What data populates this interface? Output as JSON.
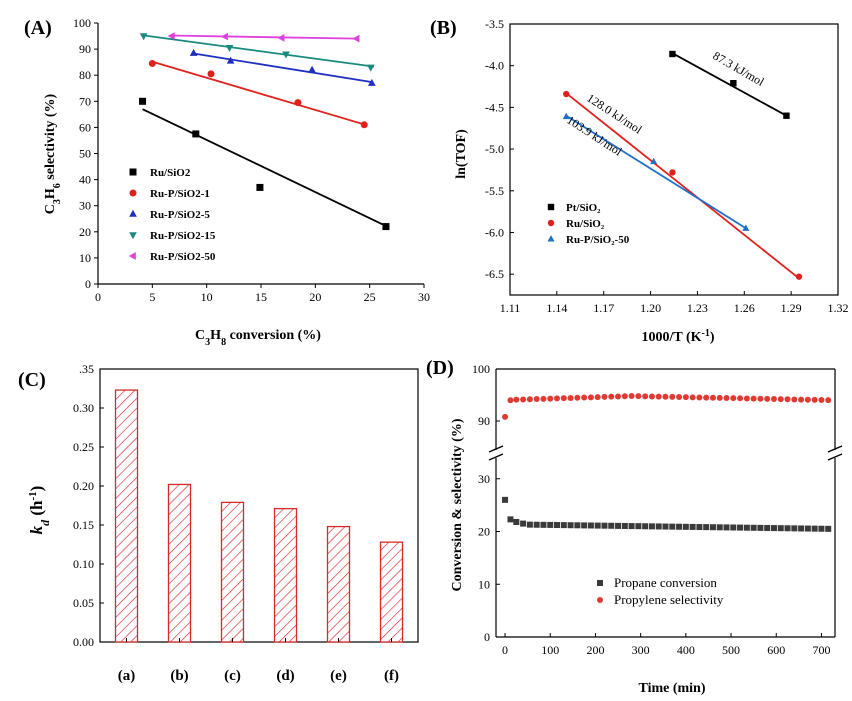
{
  "chart_data": [
    {
      "panel": "(A)",
      "type": "scatter",
      "xlabel": "C3H8 conversion (%)",
      "ylabel": "C3H6 selectivity (%)",
      "xlim": [
        0,
        30
      ],
      "ylim": [
        0,
        100
      ],
      "xticks": [
        0,
        5,
        10,
        15,
        20,
        25,
        30
      ],
      "yticks": [
        0,
        10,
        20,
        30,
        40,
        50,
        60,
        70,
        80,
        90,
        100
      ],
      "legend_position": "bottom-left",
      "series": [
        {
          "name": "Ru/SiO2",
          "color": "#000000",
          "marker": "square",
          "points": [
            [
              4.1,
              70
            ],
            [
              9,
              57.5
            ],
            [
              14.9,
              37
            ],
            [
              26.5,
              22
            ]
          ],
          "fit": [
            [
              4.1,
              67
            ],
            [
              26.2,
              22.8
            ]
          ]
        },
        {
          "name": "Ru-P/SiO2-1",
          "color": "#e0201b",
          "marker": "circle",
          "points": [
            [
              5,
              84.5
            ],
            [
              10.4,
              80.5
            ],
            [
              18.4,
              69.5
            ],
            [
              24.5,
              61
            ]
          ],
          "fit": [
            [
              4.9,
              85.3
            ],
            [
              24.7,
              60.9
            ]
          ]
        },
        {
          "name": "Ru-P/SiO2-5",
          "color": "#1f2fbf",
          "marker": "triangle-up",
          "points": [
            [
              8.8,
              88.5
            ],
            [
              12.2,
              85.5
            ],
            [
              19.7,
              82
            ],
            [
              25.2,
              77
            ]
          ],
          "fit": [
            [
              8.8,
              88.3
            ],
            [
              25.3,
              77.3
            ]
          ]
        },
        {
          "name": "Ru-P/SiO2-15",
          "color": "#1a8a80",
          "marker": "triangle-down",
          "points": [
            [
              4.2,
              95
            ],
            [
              12.1,
              90.5
            ],
            [
              17.3,
              88
            ],
            [
              25.1,
              83
            ]
          ],
          "fit": [
            [
              4.1,
              95.3
            ],
            [
              25.4,
              83.3
            ]
          ]
        },
        {
          "name": "Ru-P/SiO2-50",
          "color": "#e040e0",
          "marker": "triangle-left",
          "points": [
            [
              6.8,
              95
            ],
            [
              11.7,
              94.8
            ],
            [
              16.9,
              94.3
            ],
            [
              23.8,
              94
            ]
          ],
          "fit": [
            [
              6.6,
              95.2
            ],
            [
              23.9,
              94
            ]
          ]
        }
      ]
    },
    {
      "panel": "(B)",
      "type": "scatter",
      "xlabel": "1000/T (K⁻¹)",
      "ylabel": "ln(TOF)",
      "xlim": [
        1.11,
        1.32
      ],
      "ylim": [
        -6.75,
        -3.5
      ],
      "xticks": [
        1.11,
        1.14,
        1.17,
        1.2,
        1.23,
        1.26,
        1.29,
        1.32
      ],
      "yticks": [
        -3.5,
        -4.0,
        -4.5,
        -5.0,
        -5.5,
        -6.0,
        -6.5
      ],
      "legend_position": "bottom-left",
      "series": [
        {
          "name": "Pt/SiO₂",
          "color": "#000000",
          "marker": "square",
          "points": [
            [
              1.214,
              -3.86
            ],
            [
              1.253,
              -4.21
            ],
            [
              1.287,
              -4.6
            ]
          ],
          "fit": [
            [
              1.214,
              -3.85
            ],
            [
              1.287,
              -4.6
            ]
          ],
          "annotation": "87.3 kJ/mol"
        },
        {
          "name": "Ru/SiO₂",
          "color": "#e0201b",
          "marker": "circle",
          "points": [
            [
              1.146,
              -4.34
            ],
            [
              1.214,
              -5.28
            ],
            [
              1.295,
              -6.53
            ]
          ],
          "fit": [
            [
              1.146,
              -4.33
            ],
            [
              1.295,
              -6.55
            ]
          ],
          "annotation": "128.0 kJ/mol"
        },
        {
          "name": "Ru-P/SiO₂-50",
          "color": "#1f6fc6",
          "marker": "triangle-up",
          "points": [
            [
              1.146,
              -4.61
            ],
            [
              1.202,
              -5.15
            ],
            [
              1.261,
              -5.95
            ]
          ],
          "fit": [
            [
              1.146,
              -4.6
            ],
            [
              1.261,
              -5.95
            ]
          ],
          "annotation": "103.9 kJ/mol"
        }
      ]
    },
    {
      "panel": "(C)",
      "type": "bar",
      "categories": [
        "(a)",
        "(b)",
        "(c)",
        "(d)",
        "(e)",
        "(f)"
      ],
      "values": [
        0.323,
        0.202,
        0.179,
        0.171,
        0.148,
        0.128
      ],
      "ylabel": "kd (h-1)",
      "ylim": [
        0,
        0.35
      ],
      "yticks": [
        0.0,
        0.05,
        0.1,
        0.15,
        0.2,
        0.25,
        0.3
      ],
      "top_tick_label": ".35",
      "bar_color": "#d42a2a",
      "fill": "diagonal-hatch"
    },
    {
      "panel": "(D)",
      "type": "scatter",
      "xlabel": "Time (min)",
      "ylabel": "Conversion & selectivity (%)",
      "xlim": [
        -20,
        730
      ],
      "xticks": [
        0,
        100,
        200,
        300,
        400,
        500,
        600,
        700
      ],
      "broken_axis": true,
      "lower_ylim": [
        0,
        40
      ],
      "lower_yticks": [
        0,
        10,
        20,
        30
      ],
      "upper_ylim": [
        85,
        100
      ],
      "upper_yticks": [
        90,
        100
      ],
      "legend_position": "bottom-center",
      "series": [
        {
          "name": "Propane conversion",
          "color": "#3a3a3a",
          "marker": "square",
          "first_points": [
            [
              0,
              26
            ],
            [
              12,
              22.3
            ],
            [
              25,
              21.8
            ],
            [
              40,
              21.5
            ]
          ],
          "steady": {
            "from": 55,
            "to": 720,
            "step": 15,
            "start": 21.3,
            "end": 20.5
          }
        },
        {
          "name": "Propylene selectivity",
          "color": "#e03a33",
          "marker": "circle",
          "first_points": [
            [
              0,
              90.8
            ],
            [
              12,
              94.0
            ]
          ],
          "steady": {
            "from": 25,
            "to": 720,
            "step": 15,
            "profile": [
              [
                25,
                94.1
              ],
              [
                280,
                94.8
              ],
              [
                720,
                94.0
              ]
            ]
          }
        }
      ]
    }
  ]
}
